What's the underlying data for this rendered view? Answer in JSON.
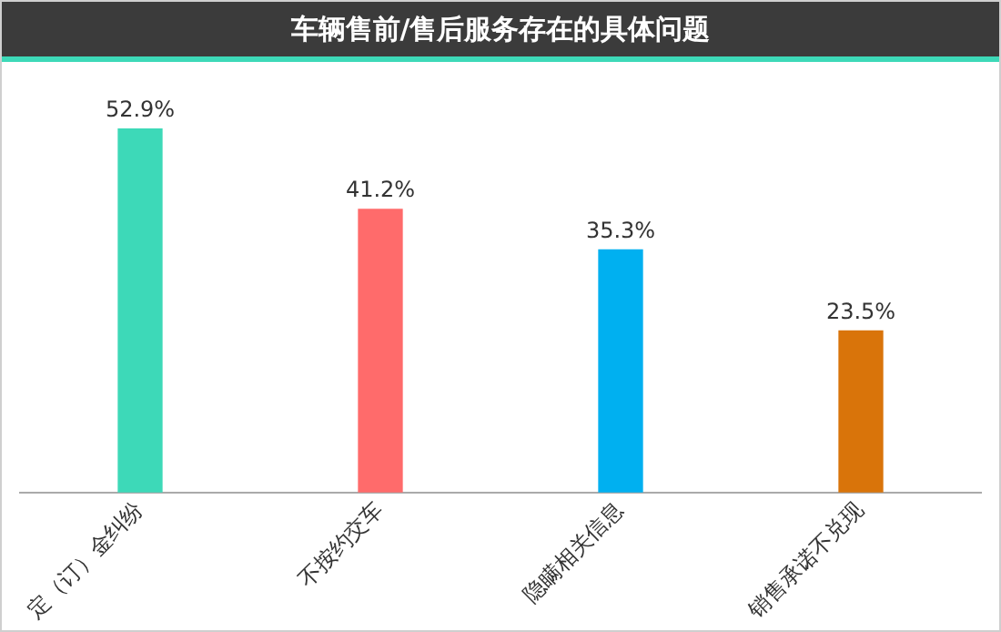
{
  "chart_data": {
    "type": "bar",
    "title": "车辆售前/售后服务存在的具体问题",
    "categories": [
      "定（订）金纠纷",
      "不按约交车",
      "隐瞒相关信息",
      "销售承诺不兑现"
    ],
    "values": [
      52.9,
      41.2,
      35.3,
      23.5
    ],
    "colors": [
      "#3dd9b8",
      "#ff6b6b",
      "#00b0f0",
      "#d9740a"
    ],
    "value_labels": [
      "52.9%",
      "41.2%",
      "35.3%",
      "23.5%"
    ],
    "grid": false,
    "legend": false
  }
}
